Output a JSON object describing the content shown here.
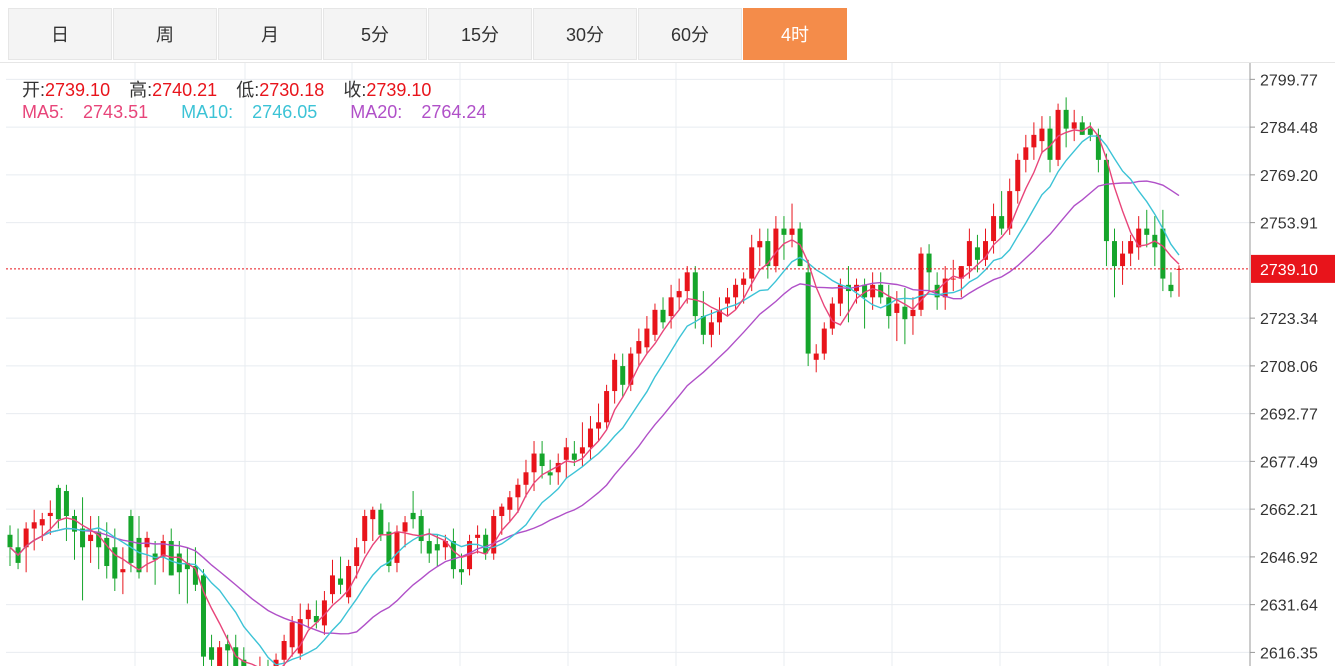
{
  "tabs": [
    {
      "label": "日",
      "active": false
    },
    {
      "label": "周",
      "active": false
    },
    {
      "label": "月",
      "active": false
    },
    {
      "label": "5分",
      "active": false
    },
    {
      "label": "15分",
      "active": false
    },
    {
      "label": "30分",
      "active": false
    },
    {
      "label": "60分",
      "active": false
    },
    {
      "label": "4时",
      "active": true
    }
  ],
  "ohlc": {
    "open_label": "开:",
    "open": "2739.10",
    "high_label": "高:",
    "high": "2740.21",
    "low_label": "低:",
    "low": "2730.18",
    "close_label": "收:",
    "close": "2739.10"
  },
  "ma": {
    "ma5_label": "MA5:",
    "ma5": "2743.51",
    "ma10_label": "MA10:",
    "ma10": "2746.05",
    "ma20_label": "MA20:",
    "ma20": "2764.24"
  },
  "colors": {
    "up": "#e8141b",
    "down": "#15a52b",
    "ma5": "#e8457a",
    "ma10": "#3cc3d6",
    "ma20": "#b050c8",
    "grid": "#e8ecf0",
    "tab_active": "#f48c4a",
    "current_price_tag": "#e8141b"
  },
  "chart_data": {
    "type": "candlestick",
    "y_axis_ticks": [
      "2799.77",
      "2784.48",
      "2769.20",
      "2753.91",
      "2739.10",
      "2723.34",
      "2708.06",
      "2692.77",
      "2677.49",
      "2662.21",
      "2646.92",
      "2631.64",
      "2616.35"
    ],
    "ylim": [
      2612,
      2805
    ],
    "current_price": 2739.1,
    "current_price_label": "2739.10",
    "grid": true,
    "candles": [
      [
        2654,
        2657,
        2644,
        2650
      ],
      [
        2650,
        2656,
        2643,
        2645
      ],
      [
        2650,
        2658,
        2642,
        2656
      ],
      [
        2656,
        2662,
        2649,
        2658
      ],
      [
        2657,
        2661,
        2652,
        2659
      ],
      [
        2660,
        2665,
        2654,
        2661
      ],
      [
        2669,
        2670,
        2656,
        2659
      ],
      [
        2668,
        2670,
        2652,
        2660
      ],
      [
        2660,
        2662,
        2646,
        2655
      ],
      [
        2656,
        2666,
        2633,
        2650
      ],
      [
        2652,
        2660,
        2645,
        2654
      ],
      [
        2655,
        2660,
        2643,
        2650
      ],
      [
        2653,
        2658,
        2640,
        2644
      ],
      [
        2650,
        2656,
        2636,
        2640
      ],
      [
        2642,
        2650,
        2635,
        2643
      ],
      [
        2660,
        2662,
        2642,
        2645
      ],
      [
        2653,
        2660,
        2640,
        2642
      ],
      [
        2650,
        2655,
        2642,
        2653
      ],
      [
        2648,
        2652,
        2638,
        2646
      ],
      [
        2647,
        2654,
        2642,
        2652
      ],
      [
        2652,
        2656,
        2641,
        2641
      ],
      [
        2648,
        2652,
        2635,
        2642
      ],
      [
        2645,
        2650,
        2632,
        2643
      ],
      [
        2644,
        2650,
        2636,
        2638
      ],
      [
        2641,
        2643,
        2612,
        2615
      ],
      [
        2618,
        2622,
        2608,
        2614
      ],
      [
        2610,
        2620,
        2605,
        2618
      ],
      [
        2619,
        2622,
        2612,
        2617
      ],
      [
        2618,
        2622,
        2608,
        2612
      ],
      [
        2614,
        2618,
        2603,
        2606
      ],
      [
        2608,
        2612,
        2600,
        2610
      ],
      [
        2611,
        2615,
        2604,
        2612
      ],
      [
        2610,
        2614,
        2604,
        2606
      ],
      [
        2608,
        2616,
        2602,
        2614
      ],
      [
        2614,
        2622,
        2610,
        2620
      ],
      [
        2618,
        2628,
        2615,
        2626
      ],
      [
        2616,
        2632,
        2614,
        2627
      ],
      [
        2627,
        2632,
        2624,
        2630
      ],
      [
        2628,
        2633,
        2624,
        2626
      ],
      [
        2625,
        2636,
        2622,
        2633
      ],
      [
        2635,
        2646,
        2632,
        2641
      ],
      [
        2640,
        2647,
        2635,
        2638
      ],
      [
        2634,
        2646,
        2632,
        2644
      ],
      [
        2644,
        2653,
        2640,
        2650
      ],
      [
        2652,
        2662,
        2648,
        2660
      ],
      [
        2659,
        2663,
        2652,
        2662
      ],
      [
        2662,
        2664,
        2652,
        2654
      ],
      [
        2655,
        2658,
        2642,
        2644
      ],
      [
        2645,
        2657,
        2642,
        2655
      ],
      [
        2655,
        2660,
        2650,
        2658
      ],
      [
        2661,
        2668,
        2656,
        2659
      ],
      [
        2660,
        2662,
        2648,
        2652
      ],
      [
        2652,
        2656,
        2645,
        2648
      ],
      [
        2651,
        2654,
        2644,
        2649
      ],
      [
        2650,
        2654,
        2646,
        2652
      ],
      [
        2652,
        2656,
        2640,
        2643
      ],
      [
        2643,
        2648,
        2638,
        2642
      ],
      [
        2643,
        2654,
        2641,
        2652
      ],
      [
        2653,
        2657,
        2648,
        2654
      ],
      [
        2654,
        2656,
        2646,
        2648
      ],
      [
        2648,
        2662,
        2646,
        2660
      ],
      [
        2660,
        2664,
        2654,
        2663
      ],
      [
        2662,
        2668,
        2658,
        2666
      ],
      [
        2666,
        2672,
        2661,
        2670
      ],
      [
        2670,
        2678,
        2666,
        2674
      ],
      [
        2674,
        2684,
        2668,
        2680
      ],
      [
        2680,
        2684,
        2672,
        2676
      ],
      [
        2674,
        2678,
        2670,
        2673
      ],
      [
        2674,
        2680,
        2670,
        2677
      ],
      [
        2678,
        2685,
        2672,
        2682
      ],
      [
        2680,
        2684,
        2676,
        2678
      ],
      [
        2680,
        2690,
        2676,
        2682
      ],
      [
        2682,
        2692,
        2678,
        2688
      ],
      [
        2688,
        2696,
        2684,
        2690
      ],
      [
        2690,
        2702,
        2688,
        2700
      ],
      [
        2700,
        2712,
        2696,
        2710
      ],
      [
        2708,
        2712,
        2698,
        2702
      ],
      [
        2702,
        2714,
        2700,
        2712
      ],
      [
        2712,
        2720,
        2708,
        2716
      ],
      [
        2714,
        2724,
        2712,
        2720
      ],
      [
        2718,
        2728,
        2716,
        2726
      ],
      [
        2726,
        2730,
        2720,
        2722
      ],
      [
        2724,
        2734,
        2720,
        2730
      ],
      [
        2730,
        2736,
        2726,
        2732
      ],
      [
        2732,
        2740,
        2728,
        2738
      ],
      [
        2738,
        2740,
        2720,
        2724
      ],
      [
        2724,
        2732,
        2715,
        2718
      ],
      [
        2718,
        2726,
        2714,
        2722
      ],
      [
        2722,
        2730,
        2718,
        2726
      ],
      [
        2728,
        2733,
        2724,
        2730
      ],
      [
        2730,
        2736,
        2726,
        2734
      ],
      [
        2734,
        2738,
        2728,
        2736
      ],
      [
        2736,
        2750,
        2732,
        2746
      ],
      [
        2746,
        2752,
        2740,
        2748
      ],
      [
        2748,
        2752,
        2736,
        2740
      ],
      [
        2740,
        2756,
        2738,
        2752
      ],
      [
        2752,
        2756,
        2742,
        2750
      ],
      [
        2750,
        2760,
        2746,
        2752
      ],
      [
        2752,
        2754,
        2740,
        2740
      ],
      [
        2738,
        2742,
        2708,
        2712
      ],
      [
        2710,
        2715,
        2706,
        2712
      ],
      [
        2712,
        2722,
        2710,
        2720
      ],
      [
        2720,
        2730,
        2718,
        2728
      ],
      [
        2728,
        2736,
        2724,
        2734
      ],
      [
        2734,
        2740,
        2722,
        2732
      ],
      [
        2732,
        2736,
        2728,
        2734
      ],
      [
        2734,
        2736,
        2720,
        2730
      ],
      [
        2730,
        2738,
        2726,
        2734
      ],
      [
        2734,
        2738,
        2728,
        2730
      ],
      [
        2730,
        2734,
        2720,
        2724
      ],
      [
        2725,
        2732,
        2716,
        2728
      ],
      [
        2727,
        2733,
        2715,
        2723
      ],
      [
        2724,
        2730,
        2718,
        2726
      ],
      [
        2726,
        2746,
        2724,
        2744
      ],
      [
        2744,
        2747,
        2732,
        2738
      ],
      [
        2734,
        2738,
        2726,
        2730
      ],
      [
        2730,
        2740,
        2726,
        2736
      ],
      [
        2736,
        2742,
        2732,
        2736
      ],
      [
        2736,
        2740,
        2730,
        2740
      ],
      [
        2740,
        2752,
        2736,
        2748
      ],
      [
        2746,
        2750,
        2738,
        2742
      ],
      [
        2742,
        2752,
        2740,
        2748
      ],
      [
        2748,
        2760,
        2744,
        2756
      ],
      [
        2756,
        2764,
        2750,
        2752
      ],
      [
        2752,
        2768,
        2750,
        2764
      ],
      [
        2764,
        2776,
        2760,
        2774
      ],
      [
        2774,
        2782,
        2770,
        2778
      ],
      [
        2778,
        2786,
        2774,
        2782
      ],
      [
        2780,
        2788,
        2776,
        2784
      ],
      [
        2784,
        2788,
        2770,
        2774
      ],
      [
        2774,
        2792,
        2772,
        2790
      ],
      [
        2790,
        2794,
        2778,
        2784
      ],
      [
        2784,
        2790,
        2780,
        2786
      ],
      [
        2786,
        2788,
        2782,
        2782
      ],
      [
        2784,
        2786,
        2780,
        2782
      ],
      [
        2782,
        2784,
        2770,
        2774
      ],
      [
        2774,
        2776,
        2740,
        2748
      ],
      [
        2748,
        2752,
        2730,
        2740
      ],
      [
        2740,
        2748,
        2734,
        2744
      ],
      [
        2744,
        2750,
        2740,
        2748
      ],
      [
        2746,
        2756,
        2742,
        2752
      ],
      [
        2752,
        2758,
        2746,
        2750
      ],
      [
        2750,
        2756,
        2740,
        2746
      ],
      [
        2752,
        2758,
        2732,
        2736
      ],
      [
        2734,
        2738,
        2730,
        2732
      ],
      [
        2739.1,
        2740.21,
        2730.18,
        2739.1
      ]
    ]
  }
}
